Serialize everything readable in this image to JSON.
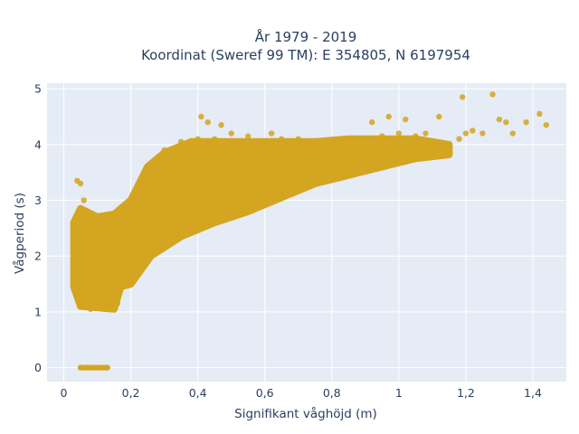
{
  "chart_data": {
    "type": "scatter",
    "title_line1": "År 1979 - 2019",
    "title_line2": "Koordinat (Sweref 99 TM): E 354805, N 6197954",
    "xlabel": "Signifikant våghöjd (m)",
    "ylabel": "Vågperiod (s)",
    "xlim": [
      -0.05,
      1.5
    ],
    "ylim": [
      -0.25,
      5.1
    ],
    "x_ticks": [
      0,
      0.2,
      0.4,
      0.6,
      0.8,
      1,
      1.2,
      1.4
    ],
    "x_tick_labels": [
      "0",
      "0,2",
      "0,4",
      "0,6",
      "0,8",
      "1",
      "1,2",
      "1,4"
    ],
    "y_ticks": [
      0,
      1,
      2,
      3,
      4,
      5
    ],
    "y_tick_labels": [
      "0",
      "1",
      "2",
      "3",
      "4",
      "5"
    ],
    "grid": true,
    "plot_background": "#e5ecf6",
    "marker_color": "#d4a520",
    "series": [
      {
        "points": [
          [
            0.05,
            0
          ],
          [
            0.07,
            0
          ],
          [
            0.09,
            0
          ],
          [
            0.11,
            0
          ],
          [
            0.13,
            0
          ],
          [
            0.03,
            1.5
          ],
          [
            0.03,
            1.75
          ],
          [
            0.04,
            3.35
          ],
          [
            0.05,
            3.3
          ],
          [
            0.06,
            3.0
          ],
          [
            0.04,
            2.2
          ],
          [
            0.05,
            1.1
          ],
          [
            0.08,
            1.05
          ],
          [
            0.12,
            1.05
          ],
          [
            0.16,
            1.15
          ],
          [
            0.15,
            1.55
          ],
          [
            0.2,
            1.55
          ],
          [
            0.2,
            2.0
          ],
          [
            0.2,
            2.7
          ],
          [
            0.15,
            2.4
          ],
          [
            0.25,
            2.1
          ],
          [
            0.25,
            3.0
          ],
          [
            0.25,
            3.6
          ],
          [
            0.3,
            2.3
          ],
          [
            0.3,
            3.9
          ],
          [
            0.3,
            3.3
          ],
          [
            0.35,
            2.45
          ],
          [
            0.35,
            4.05
          ],
          [
            0.35,
            3.4
          ],
          [
            0.4,
            2.55
          ],
          [
            0.4,
            4.1
          ],
          [
            0.41,
            4.5
          ],
          [
            0.43,
            4.4
          ],
          [
            0.47,
            4.35
          ],
          [
            0.4,
            3.5
          ],
          [
            0.45,
            2.7
          ],
          [
            0.45,
            4.1
          ],
          [
            0.5,
            2.8
          ],
          [
            0.5,
            4.2
          ],
          [
            0.5,
            3.6
          ],
          [
            0.55,
            2.95
          ],
          [
            0.55,
            4.15
          ],
          [
            0.6,
            3.0
          ],
          [
            0.6,
            4.05
          ],
          [
            0.62,
            4.2
          ],
          [
            0.6,
            3.6
          ],
          [
            0.65,
            3.15
          ],
          [
            0.65,
            4.1
          ],
          [
            0.7,
            3.3
          ],
          [
            0.7,
            4.1
          ],
          [
            0.7,
            3.7
          ],
          [
            0.75,
            3.4
          ],
          [
            0.75,
            4.05
          ],
          [
            0.78,
            3.5
          ],
          [
            0.8,
            3.55
          ],
          [
            0.8,
            4.05
          ],
          [
            0.85,
            3.6
          ],
          [
            0.85,
            4.1
          ],
          [
            0.9,
            3.65
          ],
          [
            0.9,
            4.1
          ],
          [
            0.92,
            4.4
          ],
          [
            0.95,
            3.7
          ],
          [
            0.95,
            4.15
          ],
          [
            0.97,
            4.5
          ],
          [
            1.0,
            3.8
          ],
          [
            1.0,
            4.2
          ],
          [
            1.02,
            4.45
          ],
          [
            1.05,
            3.85
          ],
          [
            1.05,
            4.15
          ],
          [
            1.08,
            4.2
          ],
          [
            1.1,
            3.9
          ],
          [
            1.12,
            4.5
          ],
          [
            1.15,
            3.9
          ],
          [
            1.15,
            4.0
          ],
          [
            1.18,
            4.1
          ],
          [
            1.2,
            4.2
          ],
          [
            1.22,
            4.25
          ],
          [
            1.19,
            4.85
          ],
          [
            1.25,
            4.2
          ],
          [
            1.28,
            4.9
          ],
          [
            1.3,
            4.45
          ],
          [
            1.32,
            4.4
          ],
          [
            1.34,
            4.2
          ],
          [
            1.38,
            4.4
          ],
          [
            1.42,
            4.55
          ],
          [
            1.44,
            4.35
          ]
        ]
      }
    ]
  }
}
